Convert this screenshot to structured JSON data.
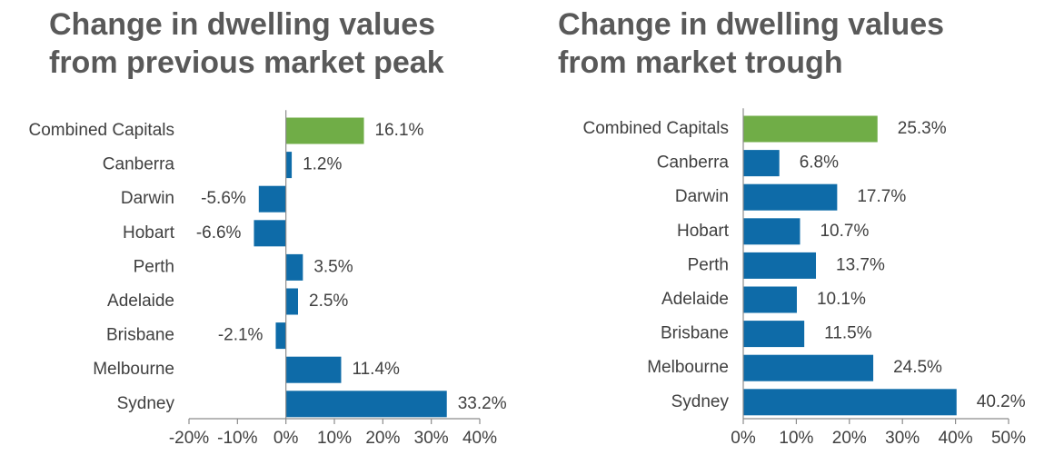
{
  "chart_data": [
    {
      "type": "bar",
      "orientation": "horizontal",
      "title": "Change in dwelling values\nfrom previous market peak",
      "categories": [
        "Combined Capitals",
        "Canberra",
        "Darwin",
        "Hobart",
        "Perth",
        "Adelaide",
        "Brisbane",
        "Melbourne",
        "Sydney"
      ],
      "values": [
        16.1,
        1.2,
        -5.6,
        -6.6,
        3.5,
        2.5,
        -2.1,
        11.4,
        33.2
      ],
      "value_labels": [
        "16.1%",
        "1.2%",
        "-5.6%",
        "-6.6%",
        "3.5%",
        "2.5%",
        "-2.1%",
        "11.4%",
        "33.2%"
      ],
      "xlim": [
        -20,
        40
      ],
      "ticks": [
        -20,
        -10,
        0,
        10,
        20,
        30,
        40
      ],
      "tick_labels": [
        "-20%",
        "-10%",
        "0%",
        "10%",
        "20%",
        "30%",
        "40%"
      ],
      "grid": false,
      "colors": {
        "highlight": "#70AD47",
        "bar": "#0E6BA8",
        "highlight_category": "Combined Capitals"
      }
    },
    {
      "type": "bar",
      "orientation": "horizontal",
      "title": "Change in dwelling values\nfrom market trough",
      "categories": [
        "Combined Capitals",
        "Canberra",
        "Darwin",
        "Hobart",
        "Perth",
        "Adelaide",
        "Brisbane",
        "Melbourne",
        "Sydney"
      ],
      "values": [
        25.3,
        6.8,
        17.7,
        10.7,
        13.7,
        10.1,
        11.5,
        24.5,
        40.2
      ],
      "value_labels": [
        "25.3%",
        "6.8%",
        "17.7%",
        "10.7%",
        "13.7%",
        "10.1%",
        "11.5%",
        "24.5%",
        "40.2%"
      ],
      "xlim": [
        0,
        50
      ],
      "ticks": [
        0,
        10,
        20,
        30,
        40,
        50
      ],
      "tick_labels": [
        "0%",
        "10%",
        "20%",
        "30%",
        "40%",
        "50%"
      ],
      "grid": false,
      "colors": {
        "highlight": "#70AD47",
        "bar": "#0E6BA8",
        "highlight_category": "Combined Capitals"
      }
    }
  ]
}
